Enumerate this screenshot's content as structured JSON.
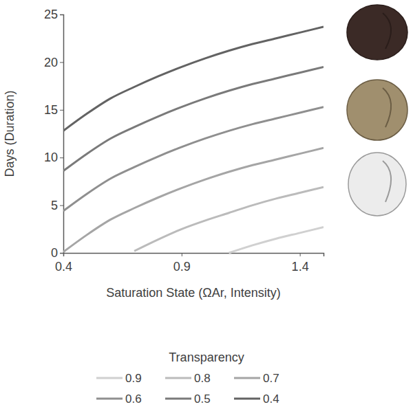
{
  "chart_data": {
    "type": "line",
    "x_label": "Saturation State (ΩAr, Intensity)",
    "y_label": "Days (Duration)",
    "legend_title": "Transparency",
    "legend": "bottom",
    "grid": false,
    "x": [
      0.4,
      0.5,
      0.6,
      0.7,
      0.8,
      0.9,
      1.0,
      1.1,
      1.2,
      1.3,
      1.4,
      1.5
    ],
    "xlim": [
      0.4,
      1.5
    ],
    "xticks": [
      0.4,
      0.9,
      1.4
    ],
    "ylim": [
      0,
      25
    ],
    "yticks": [
      0,
      5,
      10,
      15,
      20,
      25
    ],
    "series": [
      {
        "name": "0.9",
        "color": "#d0d0d0",
        "values": [
          null,
          null,
          null,
          null,
          null,
          null,
          null,
          0.0,
          0.8,
          1.5,
          2.1,
          2.7
        ]
      },
      {
        "name": "0.8",
        "color": "#bbbbbb",
        "values": [
          null,
          null,
          null,
          0.2,
          1.4,
          2.5,
          3.4,
          4.2,
          5.0,
          5.7,
          6.3,
          6.9
        ]
      },
      {
        "name": "0.7",
        "color": "#a5a5a5",
        "values": [
          0.1,
          1.9,
          3.5,
          4.7,
          5.8,
          6.8,
          7.7,
          8.5,
          9.2,
          9.8,
          10.4,
          11.0
        ]
      },
      {
        "name": "0.6",
        "color": "#8f8f8f",
        "values": [
          4.4,
          6.2,
          7.8,
          9.0,
          10.1,
          11.1,
          12.0,
          12.8,
          13.5,
          14.1,
          14.7,
          15.3
        ]
      },
      {
        "name": "0.5",
        "color": "#7a7a7a",
        "values": [
          8.6,
          10.4,
          12.0,
          13.2,
          14.3,
          15.3,
          16.2,
          17.0,
          17.7,
          18.3,
          18.9,
          19.5
        ]
      },
      {
        "name": "0.4",
        "color": "#636363",
        "values": [
          12.8,
          14.6,
          16.2,
          17.4,
          18.5,
          19.5,
          20.4,
          21.2,
          21.9,
          22.5,
          23.1,
          23.7
        ]
      }
    ]
  }
}
